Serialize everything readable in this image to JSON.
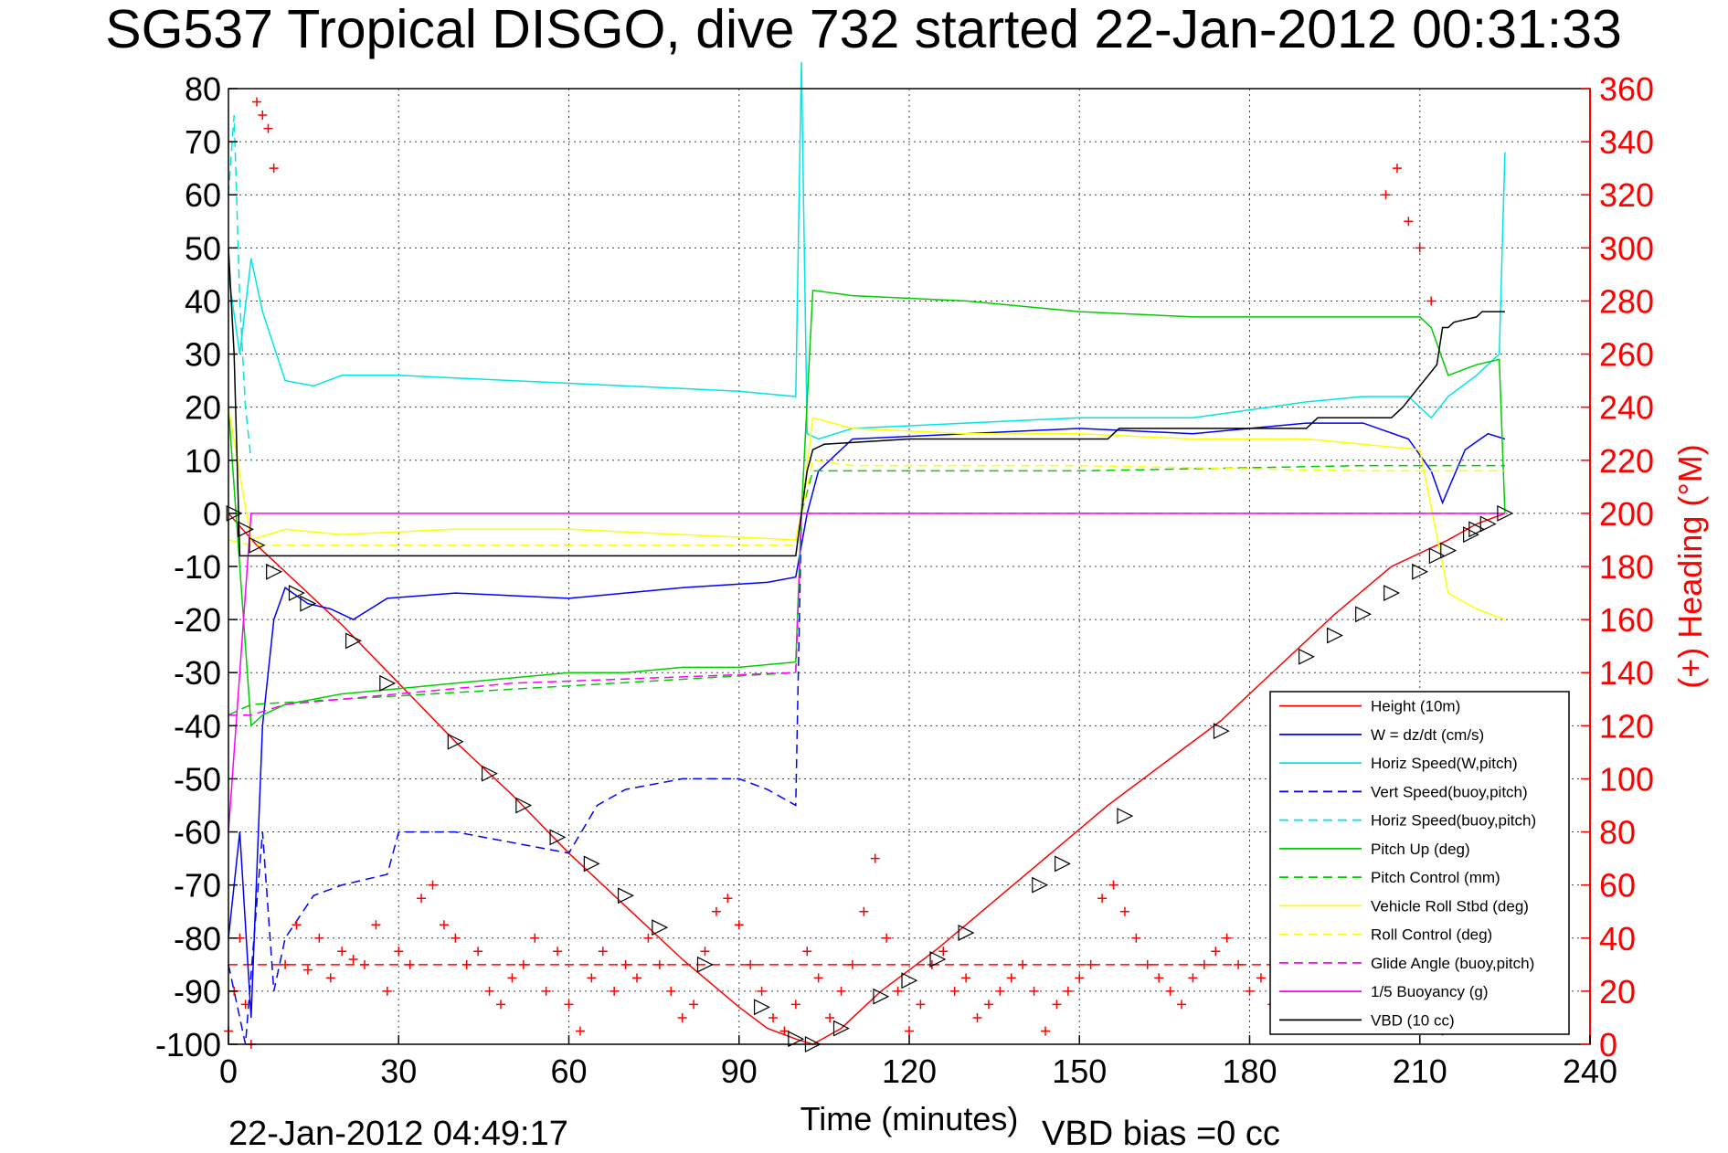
{
  "chart_data": {
    "type": "line",
    "title": "SG537 Tropical DISGO, dive 732 started 22-Jan-2012 00:31:33",
    "xlabel": "Time (minutes)",
    "ylabel_right": "(+) Heading (°M)",
    "xlim": [
      0,
      240
    ],
    "ylim": [
      -100,
      80
    ],
    "ylim_right": [
      0,
      360
    ],
    "xticks": [
      "0",
      "30",
      "60",
      "90",
      "120",
      "150",
      "180",
      "210",
      "240"
    ],
    "yticks": [
      "80",
      "70",
      "60",
      "50",
      "40",
      "30",
      "20",
      "10",
      "0",
      "-10",
      "-20",
      "-30",
      "-40",
      "-50",
      "-60",
      "-70",
      "-80",
      "-90",
      "-100"
    ],
    "yticks_right": [
      "360",
      "340",
      "320",
      "300",
      "280",
      "260",
      "240",
      "220",
      "200",
      "180",
      "160",
      "140",
      "120",
      "100",
      "80",
      "60",
      "40",
      "20",
      "0"
    ],
    "grid": true,
    "legend_position": "bottom-right",
    "footer_left": "22-Jan-2012 04:49:17",
    "footer_right": "VBD bias =0 cc",
    "series": [
      {
        "name": "Height (10m)",
        "color": "#ff0000",
        "style": "solid",
        "x": [
          0,
          5,
          10,
          20,
          30,
          40,
          50,
          60,
          70,
          80,
          90,
          95,
          100,
          103,
          108,
          115,
          125,
          135,
          145,
          155,
          165,
          175,
          185,
          195,
          205,
          215,
          220,
          225
        ],
        "y": [
          0,
          -6,
          -11,
          -21,
          -32,
          -43,
          -53,
          -64,
          -74,
          -84,
          -93,
          -97,
          -99,
          -100,
          -97,
          -90,
          -82,
          -73,
          -64,
          -55,
          -47,
          -39,
          -29,
          -19,
          -10,
          -5,
          -2,
          0
        ]
      },
      {
        "name": "W = dz/dt (cm/s)",
        "color": "#0000ff",
        "style": "solid",
        "x": [
          0,
          2,
          4,
          6,
          8,
          10,
          14,
          18,
          22,
          28,
          40,
          60,
          80,
          95,
          100,
          102,
          104,
          110,
          130,
          150,
          170,
          190,
          200,
          208,
          212,
          214,
          218,
          222,
          225
        ],
        "y": [
          -80,
          -60,
          -95,
          -40,
          -20,
          -14,
          -17,
          -18,
          -20,
          -16,
          -15,
          -16,
          -14,
          -13,
          -12,
          0,
          8,
          14,
          15,
          16,
          15,
          17,
          17,
          14,
          8,
          2,
          12,
          15,
          14
        ]
      },
      {
        "name": "Horiz Speed(W,pitch)",
        "color": "#00e5e5",
        "style": "solid",
        "x": [
          0,
          2,
          4,
          6,
          10,
          15,
          20,
          30,
          50,
          70,
          90,
          100,
          101,
          102,
          104,
          110,
          130,
          150,
          170,
          190,
          200,
          208,
          212,
          215,
          220,
          224,
          225
        ],
        "y": [
          45,
          30,
          48,
          38,
          25,
          24,
          26,
          26,
          25,
          24,
          23,
          22,
          85,
          15,
          14,
          16,
          17,
          18,
          18,
          21,
          22,
          22,
          18,
          22,
          26,
          30,
          68
        ]
      },
      {
        "name": "Vert Speed(buoy,pitch)",
        "color": "#0000ff",
        "style": "dashed",
        "x": [
          0,
          3,
          6,
          8,
          10,
          15,
          20,
          28,
          30,
          40,
          50,
          60,
          65,
          70,
          80,
          90,
          95,
          100,
          101
        ],
        "y": [
          -85,
          -100,
          -60,
          -90,
          -80,
          -72,
          -70,
          -68,
          -60,
          -60,
          -62,
          -64,
          -55,
          -52,
          -50,
          -50,
          -52,
          -55,
          0
        ]
      },
      {
        "name": "Horiz Speed(buoy,pitch)",
        "color": "#00e5e5",
        "style": "dashed",
        "x": [
          0,
          1,
          2,
          3,
          4
        ],
        "y": [
          60,
          75,
          40,
          20,
          10
        ]
      },
      {
        "name": "Pitch Up (deg)",
        "color": "#00cc00",
        "style": "solid",
        "x": [
          0,
          4,
          6,
          10,
          20,
          30,
          40,
          50,
          60,
          70,
          80,
          90,
          100,
          101,
          103,
          110,
          130,
          150,
          170,
          190,
          200,
          210,
          212,
          215,
          220,
          224,
          225
        ],
        "y": [
          20,
          -40,
          -38,
          -36,
          -34,
          -33,
          -32,
          -31,
          -30,
          -30,
          -29,
          -29,
          -28,
          0,
          42,
          41,
          40,
          38,
          37,
          37,
          37,
          37,
          35,
          26,
          28,
          29,
          0
        ]
      },
      {
        "name": "Pitch Control (mm)",
        "color": "#00cc00",
        "style": "dashed",
        "x": [
          0,
          4,
          100,
          101,
          103,
          110,
          150,
          200,
          225
        ],
        "y": [
          -38,
          -36,
          -30,
          0,
          8,
          8,
          8,
          9,
          9
        ]
      },
      {
        "name": "Vehicle Roll Stbd (deg)",
        "color": "#ffff00",
        "style": "solid",
        "x": [
          0,
          4,
          10,
          20,
          40,
          60,
          80,
          100,
          101,
          103,
          110,
          130,
          150,
          170,
          190,
          200,
          210,
          215,
          220,
          225
        ],
        "y": [
          20,
          -5,
          -3,
          -4,
          -3,
          -3,
          -4,
          -5,
          0,
          18,
          16,
          15,
          15,
          14,
          14,
          13,
          12,
          -15,
          -18,
          -20
        ]
      },
      {
        "name": "Roll Control (deg)",
        "color": "#ffff00",
        "style": "dashed",
        "x": [
          0,
          4,
          100,
          101,
          103,
          110,
          150,
          200,
          225
        ],
        "y": [
          -5,
          -6,
          -6,
          0,
          10,
          9,
          9,
          8,
          8
        ]
      },
      {
        "name": "Glide Angle (buoy,pitch)",
        "color": "#ff00ff",
        "style": "dashed",
        "x": [
          0,
          4,
          10,
          50,
          100,
          101,
          103,
          225
        ],
        "y": [
          -38,
          -38,
          -36,
          -32,
          -30,
          0,
          0,
          0
        ]
      },
      {
        "name": "1/5 Buoyancy (g)",
        "color": "#ff00ff",
        "style": "solid",
        "x": [
          0,
          4,
          100,
          103,
          225
        ],
        "y": [
          -60,
          0,
          0,
          0,
          0
        ]
      },
      {
        "name": "VBD (10 cc)",
        "color": "#000000",
        "style": "solid",
        "x": [
          0,
          1,
          2,
          100,
          101,
          102,
          103,
          105,
          120,
          155,
          157,
          190,
          192,
          205,
          207,
          213,
          214,
          215,
          216,
          220,
          221,
          225
        ],
        "y": [
          50,
          30,
          -8,
          -8,
          0,
          8,
          12,
          13,
          14,
          14,
          16,
          16,
          18,
          18,
          20,
          28,
          35,
          35,
          36,
          37,
          38,
          38
        ]
      }
    ],
    "heading_scatter": {
      "name": "Heading",
      "color": "#ff0000",
      "marker": "+",
      "reference_line": 30,
      "x": [
        0,
        1,
        2,
        3,
        4,
        5,
        6,
        7,
        8,
        10,
        12,
        14,
        16,
        18,
        20,
        22,
        24,
        26,
        28,
        30,
        32,
        34,
        36,
        38,
        40,
        42,
        44,
        46,
        48,
        50,
        52,
        54,
        56,
        58,
        60,
        62,
        64,
        66,
        68,
        70,
        72,
        74,
        76,
        78,
        80,
        82,
        84,
        86,
        88,
        90,
        92,
        94,
        96,
        98,
        100,
        102,
        104,
        106,
        108,
        110,
        112,
        114,
        116,
        118,
        120,
        122,
        124,
        126,
        128,
        130,
        132,
        134,
        136,
        138,
        140,
        142,
        144,
        146,
        148,
        150,
        152,
        154,
        156,
        158,
        160,
        162,
        164,
        166,
        168,
        170,
        172,
        174,
        176,
        178,
        180,
        182,
        184,
        186,
        188,
        190,
        192,
        194,
        196,
        198,
        200,
        202,
        204,
        206,
        208,
        210,
        212,
        214,
        216,
        218,
        220,
        222,
        224
      ],
      "y": [
        5,
        20,
        40,
        15,
        0,
        355,
        350,
        345,
        330,
        30,
        45,
        28,
        40,
        25,
        35,
        32,
        30,
        45,
        20,
        35,
        30,
        55,
        60,
        45,
        40,
        30,
        35,
        20,
        15,
        25,
        30,
        40,
        20,
        35,
        15,
        5,
        25,
        35,
        20,
        30,
        25,
        40,
        30,
        20,
        10,
        15,
        35,
        50,
        55,
        45,
        30,
        20,
        10,
        5,
        15,
        35,
        25,
        10,
        20,
        30,
        50,
        70,
        40,
        20,
        5,
        15,
        30,
        35,
        20,
        25,
        10,
        15,
        20,
        25,
        30,
        20,
        5,
        15,
        20,
        25,
        30,
        55,
        60,
        50,
        40,
        30,
        25,
        20,
        15,
        25,
        30,
        35,
        40,
        30,
        20,
        25,
        15,
        10,
        30,
        35,
        20,
        15,
        10,
        25,
        30,
        20,
        320,
        330,
        310,
        300,
        280,
        5,
        10,
        15,
        20,
        25,
        30
      ]
    },
    "triangle_markers": {
      "color": "#000000",
      "x": [
        1,
        3,
        5,
        8,
        12,
        14,
        22,
        28,
        40,
        46,
        52,
        58,
        64,
        70,
        76,
        84,
        94,
        100,
        103,
        108,
        115,
        120,
        125,
        130,
        143,
        147,
        158,
        175,
        190,
        195,
        200,
        205,
        210,
        213,
        215,
        219,
        220,
        222,
        225
      ],
      "y": [
        0,
        -3,
        -6,
        -11,
        -15,
        -17,
        -24,
        -32,
        -43,
        -49,
        -55,
        -61,
        -66,
        -72,
        -78,
        -85,
        -93,
        -99,
        -100,
        -97,
        -91,
        -88,
        -84,
        -79,
        -70,
        -66,
        -57,
        -41,
        -27,
        -23,
        -19,
        -15,
        -11,
        -8,
        -7,
        -4,
        -3,
        -2,
        0
      ]
    }
  }
}
